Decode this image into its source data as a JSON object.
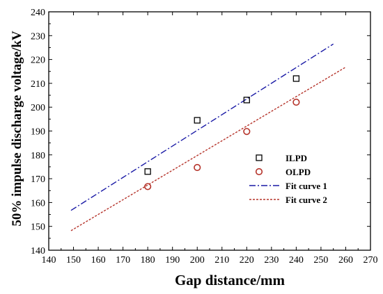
{
  "chart_data": {
    "type": "scatter",
    "title": "",
    "xlabel": "Gap distance/mm",
    "ylabel": "50% impulse discharge voltage/kV",
    "xlim": [
      140,
      270
    ],
    "ylim": [
      140,
      240
    ],
    "x_ticks": [
      140,
      150,
      160,
      170,
      180,
      190,
      200,
      210,
      220,
      230,
      240,
      250,
      260,
      270
    ],
    "y_ticks": [
      140,
      150,
      160,
      170,
      180,
      190,
      200,
      210,
      220,
      230,
      240
    ],
    "grid": false,
    "legend_position": "bottom-right",
    "series": [
      {
        "name": "ILPD",
        "kind": "scatter",
        "marker": "square",
        "color": "#000000",
        "x": [
          180,
          200,
          220,
          240
        ],
        "y": [
          173,
          194.5,
          203,
          212
        ]
      },
      {
        "name": "OLPD",
        "kind": "scatter",
        "marker": "circle",
        "color": "#b5332a",
        "x": [
          180,
          200,
          220,
          240
        ],
        "y": [
          166.7,
          174.7,
          189.8,
          202.1
        ]
      },
      {
        "name": "Fit curve 1",
        "kind": "line",
        "dash": "dash-dot",
        "color": "#1a1aa6",
        "x": [
          149,
          255
        ],
        "y": [
          156.7,
          226.5
        ]
      },
      {
        "name": "Fit curve 2",
        "kind": "line",
        "dash": "dash",
        "color": "#b5332a",
        "x": [
          149,
          260
        ],
        "y": [
          148.2,
          216.8
        ]
      }
    ]
  }
}
